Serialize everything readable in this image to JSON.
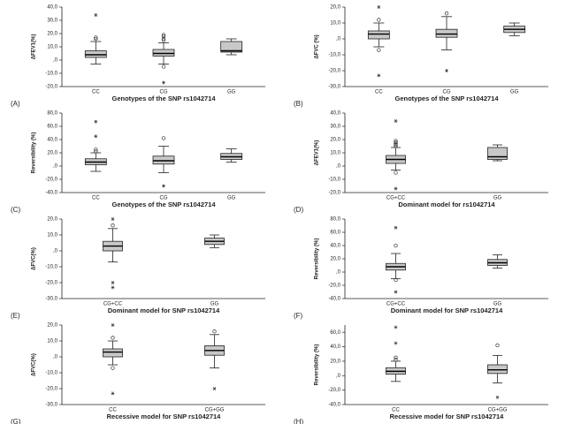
{
  "chart_data": [
    {
      "type": "box",
      "label": "(A)",
      "ylabel": "ΔFEV1(%)",
      "xlabel": "Genotypes of the SNP rs1042714",
      "color": "#c8c8c8",
      "categories": [
        "CC",
        "CG",
        "GG"
      ],
      "ylim": [
        -20,
        40
      ],
      "yticks": [
        {
          "value": -20,
          "label": "-20,0"
        },
        {
          "value": -10,
          "label": "-10,0"
        },
        {
          "value": 0,
          "label": ",0"
        },
        {
          "value": 10,
          "label": "10,0"
        },
        {
          "value": 20,
          "label": "20,0"
        },
        {
          "value": 30,
          "label": "30,0"
        },
        {
          "value": 40,
          "label": "40,0"
        }
      ],
      "boxes": [
        {
          "whislo": -3,
          "q1": 2,
          "med": 4,
          "q3": 7,
          "whishi": 14,
          "outliers": [
            16,
            17
          ],
          "extremes": [
            34
          ]
        },
        {
          "whislo": -3,
          "q1": 3,
          "med": 5,
          "q3": 8,
          "whishi": 13,
          "outliers": [
            15,
            16,
            18,
            19,
            -5
          ],
          "extremes": [
            -17
          ]
        },
        {
          "whislo": 4,
          "q1": 6,
          "med": 7,
          "q3": 14,
          "whishi": 16,
          "outliers": [],
          "extremes": []
        }
      ]
    },
    {
      "type": "box",
      "label": "(B)",
      "ylabel": "ΔFVC (%)",
      "xlabel": "Genotypes of the SNP rs1042714",
      "color": "#c8c8c8",
      "categories": [
        "CC",
        "CG",
        "GG"
      ],
      "ylim": [
        -30,
        20
      ],
      "yticks": [
        {
          "value": -30,
          "label": "-30,0"
        },
        {
          "value": -20,
          "label": "-20,0"
        },
        {
          "value": -10,
          "label": "-10,0"
        },
        {
          "value": 0,
          "label": ",0"
        },
        {
          "value": 10,
          "label": "10,0"
        },
        {
          "value": 20,
          "label": "20,0"
        }
      ],
      "boxes": [
        {
          "whislo": -5,
          "q1": 0,
          "med": 3,
          "q3": 5,
          "whishi": 10,
          "outliers": [
            12,
            -7
          ],
          "extremes": [
            20,
            -23
          ]
        },
        {
          "whislo": -7,
          "q1": 1,
          "med": 3,
          "q3": 6,
          "whishi": 14,
          "outliers": [
            16
          ],
          "extremes": [
            -20
          ]
        },
        {
          "whislo": 2,
          "q1": 4,
          "med": 6,
          "q3": 8,
          "whishi": 10,
          "outliers": [],
          "extremes": []
        }
      ]
    },
    {
      "type": "box",
      "label": "(C)",
      "ylabel": "Reversibility (%)",
      "xlabel": "Genotypes of the SNP rs1042714",
      "color": "#c8c8c8",
      "categories": [
        "CC",
        "CG",
        "GG"
      ],
      "ylim": [
        -40,
        80
      ],
      "yticks": [
        {
          "value": -40,
          "label": "-40,0"
        },
        {
          "value": -20,
          "label": "-20,0"
        },
        {
          "value": 0,
          "label": ",0"
        },
        {
          "value": 20,
          "label": "20,0"
        },
        {
          "value": 40,
          "label": "40,0"
        },
        {
          "value": 60,
          "label": "60,0"
        },
        {
          "value": 80,
          "label": "80,0"
        }
      ],
      "boxes": [
        {
          "whislo": -8,
          "q1": 2,
          "med": 6,
          "q3": 11,
          "whishi": 20,
          "outliers": [
            22,
            25
          ],
          "extremes": [
            45,
            67
          ]
        },
        {
          "whislo": -10,
          "q1": 3,
          "med": 8,
          "q3": 15,
          "whishi": 30,
          "outliers": [
            42
          ],
          "extremes": [
            -30
          ]
        },
        {
          "whislo": 6,
          "q1": 10,
          "med": 14,
          "q3": 19,
          "whishi": 26,
          "outliers": [],
          "extremes": []
        }
      ]
    },
    {
      "type": "box",
      "label": "(D)",
      "ylabel": "ΔFEV1(%)",
      "xlabel": "Dominant model for rs1042714",
      "color": "#c8c8c8",
      "categories": [
        "CG+CC",
        "GG"
      ],
      "ylim": [
        -20,
        40
      ],
      "yticks": [
        {
          "value": -20,
          "label": "-20,0"
        },
        {
          "value": -10,
          "label": "-10,0"
        },
        {
          "value": 0,
          "label": ",0"
        },
        {
          "value": 10,
          "label": "10,0"
        },
        {
          "value": 20,
          "label": "20,0"
        },
        {
          "value": 30,
          "label": "30,0"
        },
        {
          "value": 40,
          "label": "40,0"
        }
      ],
      "boxes": [
        {
          "whislo": -3,
          "q1": 2,
          "med": 5,
          "q3": 8,
          "whishi": 14,
          "outliers": [
            15,
            16,
            17,
            18,
            19,
            -5
          ],
          "extremes": [
            34,
            -17
          ]
        },
        {
          "whislo": 4,
          "q1": 5,
          "med": 7,
          "q3": 14,
          "whishi": 16,
          "outliers": [],
          "extremes": []
        }
      ]
    },
    {
      "type": "box",
      "label": "(E)",
      "ylabel": "ΔFVC(%)",
      "xlabel": "Dominant model for SNP rs1042714",
      "color": "#c8c8c8",
      "categories": [
        "CG+CC",
        "GG"
      ],
      "ylim": [
        -30,
        20
      ],
      "yticks": [
        {
          "value": -30,
          "label": "-30,0"
        },
        {
          "value": -20,
          "label": "-20,0"
        },
        {
          "value": -10,
          "label": "-10,0"
        },
        {
          "value": 0,
          "label": ",0"
        },
        {
          "value": 10,
          "label": "10,0"
        },
        {
          "value": 20,
          "label": "20,0"
        }
      ],
      "boxes": [
        {
          "whislo": -7,
          "q1": 0,
          "med": 3,
          "q3": 6,
          "whishi": 14,
          "outliers": [
            16
          ],
          "extremes": [
            20,
            -20,
            -23
          ]
        },
        {
          "whislo": 2,
          "q1": 4,
          "med": 6,
          "q3": 8,
          "whishi": 10,
          "outliers": [],
          "extremes": []
        }
      ]
    },
    {
      "type": "box",
      "label": "(F)",
      "ylabel": "Reversibility (%)",
      "xlabel": "Dominant model for SNP rs1042714",
      "color": "#c8c8c8",
      "categories": [
        "CG+CC",
        "GG"
      ],
      "ylim": [
        -40,
        80
      ],
      "yticks": [
        {
          "value": -40,
          "label": "-40,0"
        },
        {
          "value": -20,
          "label": "-20,0"
        },
        {
          "value": 0,
          "label": ",0"
        },
        {
          "value": 20,
          "label": "20,0"
        },
        {
          "value": 40,
          "label": "40,0"
        },
        {
          "value": 60,
          "label": "60,0"
        },
        {
          "value": 80,
          "label": "80,0"
        }
      ],
      "boxes": [
        {
          "whislo": -10,
          "q1": 3,
          "med": 8,
          "q3": 13,
          "whishi": 28,
          "outliers": [
            40,
            -12
          ],
          "extremes": [
            67,
            -30
          ]
        },
        {
          "whislo": 6,
          "q1": 10,
          "med": 14,
          "q3": 19,
          "whishi": 26,
          "outliers": [],
          "extremes": []
        }
      ]
    },
    {
      "type": "box",
      "label": "(G)",
      "ylabel": "ΔFVC(%)",
      "xlabel": "Recessive model for SNP rs1042714",
      "color": "#c8c8c8",
      "categories": [
        "CC",
        "CG+GG"
      ],
      "ylim": [
        -30,
        20
      ],
      "yticks": [
        {
          "value": -30,
          "label": "-30,0"
        },
        {
          "value": -20,
          "label": "-20,0"
        },
        {
          "value": -10,
          "label": "-10,0"
        },
        {
          "value": 0,
          "label": ",0"
        },
        {
          "value": 10,
          "label": "10,0"
        },
        {
          "value": 20,
          "label": "20,0"
        }
      ],
      "boxes": [
        {
          "whislo": -5,
          "q1": 0,
          "med": 3,
          "q3": 5,
          "whishi": 10,
          "outliers": [
            12,
            -7
          ],
          "extremes": [
            20,
            -23
          ]
        },
        {
          "whislo": -7,
          "q1": 1,
          "med": 4,
          "q3": 7,
          "whishi": 14,
          "outliers": [
            16
          ],
          "extremes": [
            -20
          ]
        }
      ]
    },
    {
      "type": "box",
      "label": "(H)",
      "ylabel": "Reversibility (%)",
      "xlabel": "Recessive model for SNP rs1042714",
      "color": "#c8c8c8",
      "categories": [
        "CC",
        "CG+GG"
      ],
      "ylim": [
        -40,
        70
      ],
      "yticks": [
        {
          "value": -40,
          "label": "-40,0"
        },
        {
          "value": -20,
          "label": "-20,0"
        },
        {
          "value": 0,
          "label": ",0"
        },
        {
          "value": 20,
          "label": "20,0"
        },
        {
          "value": 40,
          "label": "40,0"
        },
        {
          "value": 60,
          "label": "60,0"
        }
      ],
      "boxes": [
        {
          "whislo": -8,
          "q1": 2,
          "med": 6,
          "q3": 11,
          "whishi": 20,
          "outliers": [
            22,
            25
          ],
          "extremes": [
            45,
            67
          ]
        },
        {
          "whislo": -10,
          "q1": 3,
          "med": 8,
          "q3": 15,
          "whishi": 28,
          "outliers": [
            42
          ],
          "extremes": [
            -30
          ]
        }
      ]
    }
  ]
}
